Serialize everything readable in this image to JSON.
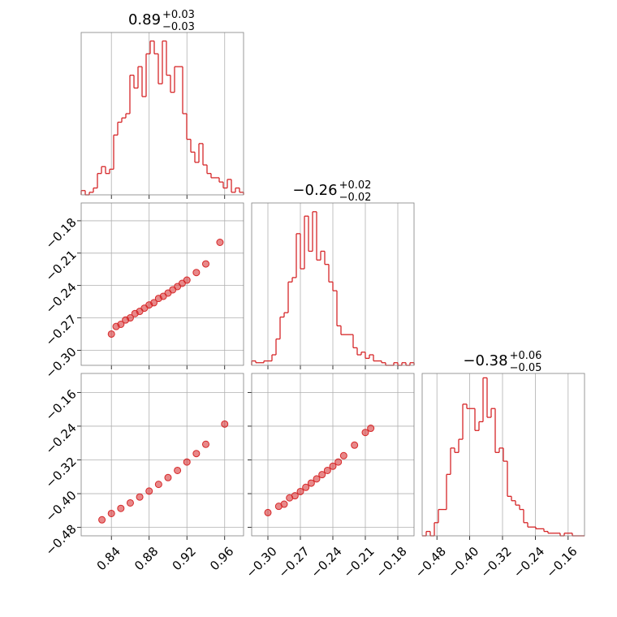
{
  "chart_data": [
    {
      "type": "histogram",
      "title": {
        "value": "0.89",
        "plus": "+0.03",
        "minus": "−0.03"
      },
      "color": "#d62728",
      "bins": [
        0.808,
        0.8123,
        0.8166,
        0.8209,
        0.8252,
        0.8295,
        0.8338,
        0.8381,
        0.8424,
        0.8467,
        0.851,
        0.8553,
        0.8596,
        0.8639,
        0.8682,
        0.8725,
        0.8768,
        0.8811,
        0.8854,
        0.8897,
        0.894,
        0.8983,
        0.9026,
        0.9069,
        0.9112,
        0.9155,
        0.9198,
        0.9241,
        0.9284,
        0.9327,
        0.937,
        0.9413,
        0.9456,
        0.9499,
        0.9542,
        0.9585,
        0.9628,
        0.9671,
        0.9714,
        0.9757,
        0.98
      ],
      "values": [
        5,
        0,
        3,
        8,
        25,
        33,
        25,
        30,
        70,
        85,
        90,
        95,
        140,
        125,
        150,
        115,
        165,
        180,
        165,
        130,
        180,
        140,
        120,
        150,
        150,
        95,
        65,
        50,
        38,
        60,
        35,
        25,
        20,
        20,
        15,
        8,
        18,
        3,
        8,
        3
      ],
      "xlim": [
        0.808,
        0.98
      ],
      "ylim": [
        0,
        190
      ],
      "xticks": [
        0.84,
        0.88,
        0.92,
        0.96
      ],
      "grid": true
    },
    {
      "type": "scatter",
      "color": "#d62728",
      "x": [
        0.84,
        0.845,
        0.85,
        0.855,
        0.86,
        0.865,
        0.87,
        0.875,
        0.88,
        0.885,
        0.89,
        0.895,
        0.9,
        0.905,
        0.91,
        0.915,
        0.92,
        0.93,
        0.94,
        0.955
      ],
      "y": [
        -0.285,
        -0.278,
        -0.276,
        -0.272,
        -0.27,
        -0.266,
        -0.264,
        -0.261,
        -0.258,
        -0.256,
        -0.252,
        -0.25,
        -0.247,
        -0.244,
        -0.241,
        -0.238,
        -0.235,
        -0.228,
        -0.22,
        -0.2
      ],
      "xlim": [
        0.808,
        0.98
      ],
      "ylim": [
        -0.314,
        -0.1635
      ],
      "xticks": [
        0.84,
        0.88,
        0.92,
        0.96
      ],
      "yticks": [
        {
          "value": -0.18,
          "label": "−0.18"
        },
        {
          "value": -0.21,
          "label": "−0.21"
        },
        {
          "value": -0.24,
          "label": "−0.24"
        },
        {
          "value": -0.27,
          "label": "−0.27"
        },
        {
          "value": -0.3,
          "label": "−0.30"
        }
      ],
      "grid": true,
      "ytick_labels": true
    },
    {
      "type": "histogram",
      "title": {
        "value": "−0.26",
        "plus": "+0.02",
        "minus": "−0.02"
      },
      "color": "#d62728",
      "bins": [
        -0.315,
        -0.31125,
        -0.3075,
        -0.30375,
        -0.3,
        -0.29625,
        -0.2925,
        -0.28875,
        -0.285,
        -0.28125,
        -0.2775,
        -0.27375,
        -0.27,
        -0.26625,
        -0.2625,
        -0.25875,
        -0.255,
        -0.25125,
        -0.2475,
        -0.24375,
        -0.24,
        -0.23625,
        -0.2325,
        -0.22875,
        -0.225,
        -0.22125,
        -0.2175,
        -0.21375,
        -0.21,
        -0.20625,
        -0.2025,
        -0.19875,
        -0.195,
        -0.19125,
        -0.1875,
        -0.18375,
        -0.18,
        -0.17625,
        -0.1725,
        -0.16875,
        -0.165
      ],
      "values": [
        5,
        3,
        3,
        5,
        5,
        12,
        30,
        55,
        60,
        95,
        100,
        150,
        110,
        170,
        130,
        175,
        120,
        130,
        115,
        95,
        85,
        45,
        35,
        35,
        35,
        20,
        12,
        15,
        8,
        12,
        5,
        5,
        3,
        0,
        0,
        3,
        0,
        3,
        0,
        3
      ],
      "xlim": [
        -0.315,
        -0.165
      ],
      "ylim": [
        0,
        185
      ],
      "xticks": [
        -0.3,
        -0.27,
        -0.24,
        -0.21,
        -0.18
      ],
      "grid": true
    },
    {
      "type": "scatter",
      "color": "#d62728",
      "x": [
        0.83,
        0.84,
        0.85,
        0.86,
        0.87,
        0.88,
        0.89,
        0.9,
        0.91,
        0.92,
        0.93,
        0.94,
        0.96
      ],
      "y": [
        -0.462,
        -0.447,
        -0.435,
        -0.422,
        -0.408,
        -0.394,
        -0.378,
        -0.362,
        -0.345,
        -0.325,
        -0.305,
        -0.283,
        -0.235
      ],
      "xlim": [
        0.808,
        0.98
      ],
      "ylim": [
        -0.5,
        -0.115
      ],
      "xticks": [
        0.84,
        0.88,
        0.92,
        0.96
      ],
      "yticks": [
        {
          "value": -0.16,
          "label": "−0.16"
        },
        {
          "value": -0.24,
          "label": "−0.24"
        },
        {
          "value": -0.32,
          "label": "−0.32"
        },
        {
          "value": -0.4,
          "label": "−0.40"
        },
        {
          "value": -0.48,
          "label": "−0.48"
        }
      ],
      "grid": true,
      "xtick_labels": true,
      "ytick_labels": true
    },
    {
      "type": "scatter",
      "color": "#d62728",
      "x": [
        -0.3,
        -0.29,
        -0.285,
        -0.28,
        -0.275,
        -0.27,
        -0.265,
        -0.26,
        -0.255,
        -0.25,
        -0.245,
        -0.24,
        -0.235,
        -0.23,
        -0.22,
        -0.21,
        -0.205
      ],
      "y": [
        -0.445,
        -0.43,
        -0.425,
        -0.41,
        -0.405,
        -0.395,
        -0.385,
        -0.375,
        -0.365,
        -0.355,
        -0.345,
        -0.335,
        -0.325,
        -0.31,
        -0.285,
        -0.255,
        -0.245
      ],
      "xlim": [
        -0.315,
        -0.165
      ],
      "ylim": [
        -0.5,
        -0.115
      ],
      "xticks": [
        {
          "value": -0.3,
          "label": "−0.30"
        },
        {
          "value": -0.27,
          "label": "−0.27"
        },
        {
          "value": -0.24,
          "label": "−0.24"
        },
        {
          "value": -0.21,
          "label": "−0.21"
        },
        {
          "value": -0.18,
          "label": "−0.18"
        }
      ],
      "yticks": [
        -0.16,
        -0.24,
        -0.32,
        -0.4,
        -0.48
      ],
      "grid": true,
      "xtick_labels": true
    },
    {
      "type": "histogram",
      "title": {
        "value": "−0.38",
        "plus": "+0.06",
        "minus": "−0.05"
      },
      "color": "#d62728",
      "bins": [
        -0.516,
        -0.5061,
        -0.4962,
        -0.4863,
        -0.4764,
        -0.4665,
        -0.4566,
        -0.4467,
        -0.4368,
        -0.4269,
        -0.417,
        -0.4071,
        -0.3972,
        -0.3873,
        -0.3774,
        -0.3675,
        -0.3576,
        -0.3477,
        -0.3378,
        -0.3279,
        -0.318,
        -0.3081,
        -0.2982,
        -0.2883,
        -0.2784,
        -0.2685,
        -0.2586,
        -0.2487,
        -0.2388,
        -0.2289,
        -0.219,
        -0.2091,
        -0.1992,
        -0.1893,
        -0.1794,
        -0.1695,
        -0.1596,
        -0.1497,
        -0.1398,
        -0.1299,
        -0.12
      ],
      "values": [
        0,
        5,
        0,
        15,
        30,
        30,
        70,
        100,
        95,
        110,
        150,
        145,
        145,
        120,
        130,
        180,
        135,
        145,
        95,
        100,
        85,
        45,
        40,
        35,
        30,
        15,
        10,
        10,
        8,
        8,
        5,
        3,
        3,
        3,
        0,
        3,
        3,
        0,
        0,
        0
      ],
      "xlim": [
        -0.516,
        -0.12
      ],
      "ylim": [
        0,
        185
      ],
      "xticks": [
        {
          "value": -0.48,
          "label": "−0.48"
        },
        {
          "value": -0.4,
          "label": "−0.40"
        },
        {
          "value": -0.32,
          "label": "−0.32"
        },
        {
          "value": -0.24,
          "label": "−0.24"
        },
        {
          "value": -0.16,
          "label": "−0.16"
        }
      ],
      "grid": true,
      "xtick_labels": true
    }
  ]
}
